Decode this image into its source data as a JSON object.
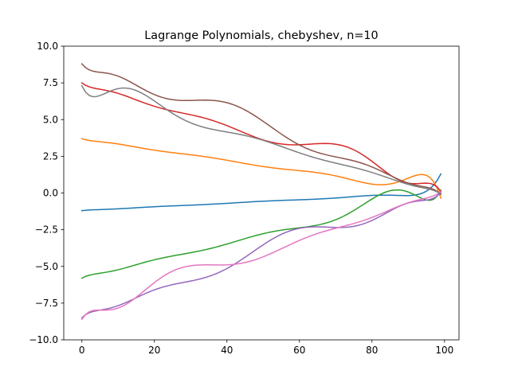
{
  "chart_data": {
    "type": "line",
    "title": "Lagrange Polynomials, chebyshev, n=10",
    "xlabel": "",
    "ylabel": "",
    "xlim": [
      -5,
      104
    ],
    "ylim": [
      -10,
      10
    ],
    "xticks": [
      0,
      20,
      40,
      60,
      80,
      100
    ],
    "yticks": [
      -10.0,
      -7.5,
      -5.0,
      -2.5,
      0.0,
      2.5,
      5.0,
      7.5,
      10.0
    ],
    "xtick_labels": [
      "0",
      "20",
      "40",
      "60",
      "80",
      "100"
    ],
    "ytick_labels": [
      "−10.0",
      "−7.5",
      "−5.0",
      "−2.5",
      "0.0",
      "2.5",
      "5.0",
      "7.5",
      "10.0"
    ],
    "grid": false,
    "legend": "none",
    "x": [
      0,
      99
    ],
    "nodes_count": 10,
    "series": [
      {
        "color": "#1f77b4",
        "start_y": -1.2,
        "end_y": 1.3
      },
      {
        "color": "#ff7f0e",
        "start_y": 3.7,
        "end_y": -0.35
      },
      {
        "color": "#2ca02c",
        "start_y": -5.8,
        "end_y": 0.2
      },
      {
        "color": "#d62728",
        "start_y": 7.5,
        "end_y": 0.1
      },
      {
        "color": "#9467bd",
        "start_y": -8.5,
        "end_y": 0.05
      },
      {
        "color": "#8c564b",
        "start_y": 8.8,
        "end_y": -0.1
      },
      {
        "color": "#e377c2",
        "start_y": -8.6,
        "end_y": 0.1
      },
      {
        "color": "#7f7f7f",
        "start_y": 7.3,
        "end_y": -0.05
      }
    ]
  }
}
